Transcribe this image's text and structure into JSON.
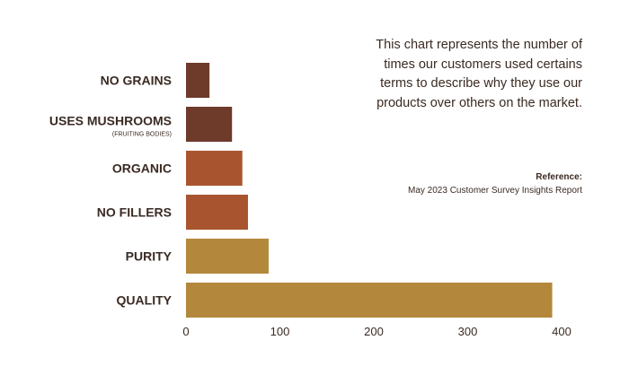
{
  "chart_data": {
    "type": "bar",
    "orientation": "horizontal",
    "categories": [
      {
        "label": "NO GRAINS",
        "sublabel": ""
      },
      {
        "label": "USES MUSHROOMS",
        "sublabel": "(FRUITING BODIES)"
      },
      {
        "label": "ORGANIC",
        "sublabel": ""
      },
      {
        "label": "NO FILLERS",
        "sublabel": ""
      },
      {
        "label": "PURITY",
        "sublabel": ""
      },
      {
        "label": "QUALITY",
        "sublabel": ""
      }
    ],
    "values": [
      25,
      49,
      60,
      66,
      88,
      390
    ],
    "colors": [
      "#6e3a2a",
      "#6e3a2a",
      "#a8552f",
      "#a8552f",
      "#b3883c",
      "#b3883c"
    ],
    "xlim": [
      0,
      400
    ],
    "xticks": [
      0,
      100,
      200,
      300,
      400
    ],
    "grid": false,
    "description": "This chart represents the number of times our customers used certains terms to describe why they use our products over others on the market.",
    "reference_title": "Reference:",
    "reference_text": "May 2023 Customer Survey Insights Report"
  }
}
